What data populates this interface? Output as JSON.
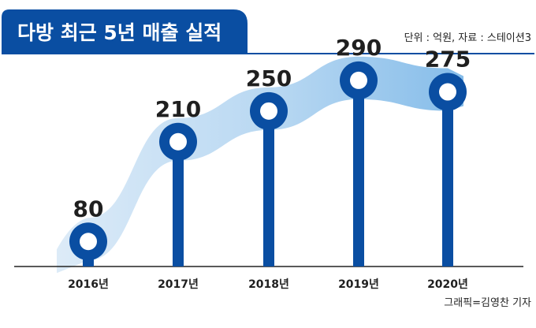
{
  "chart_data": {
    "type": "bar",
    "title": "다방 최근 5년 매출 실적",
    "unit_source": "단위 : 억원, 자료 : 스테이션3",
    "credit": "그래픽=김영찬 기자",
    "categories": [
      "2016년",
      "2017년",
      "2018년",
      "2019년",
      "2020년"
    ],
    "values": [
      80,
      210,
      250,
      290,
      275
    ],
    "xlabel": "",
    "ylabel": "",
    "grid": false,
    "colors": {
      "primary": "#0a4ea2",
      "ribbon_light": "#dbeaf7",
      "ribbon_mid": "#8fc2ea",
      "baseline": "#222222"
    }
  }
}
